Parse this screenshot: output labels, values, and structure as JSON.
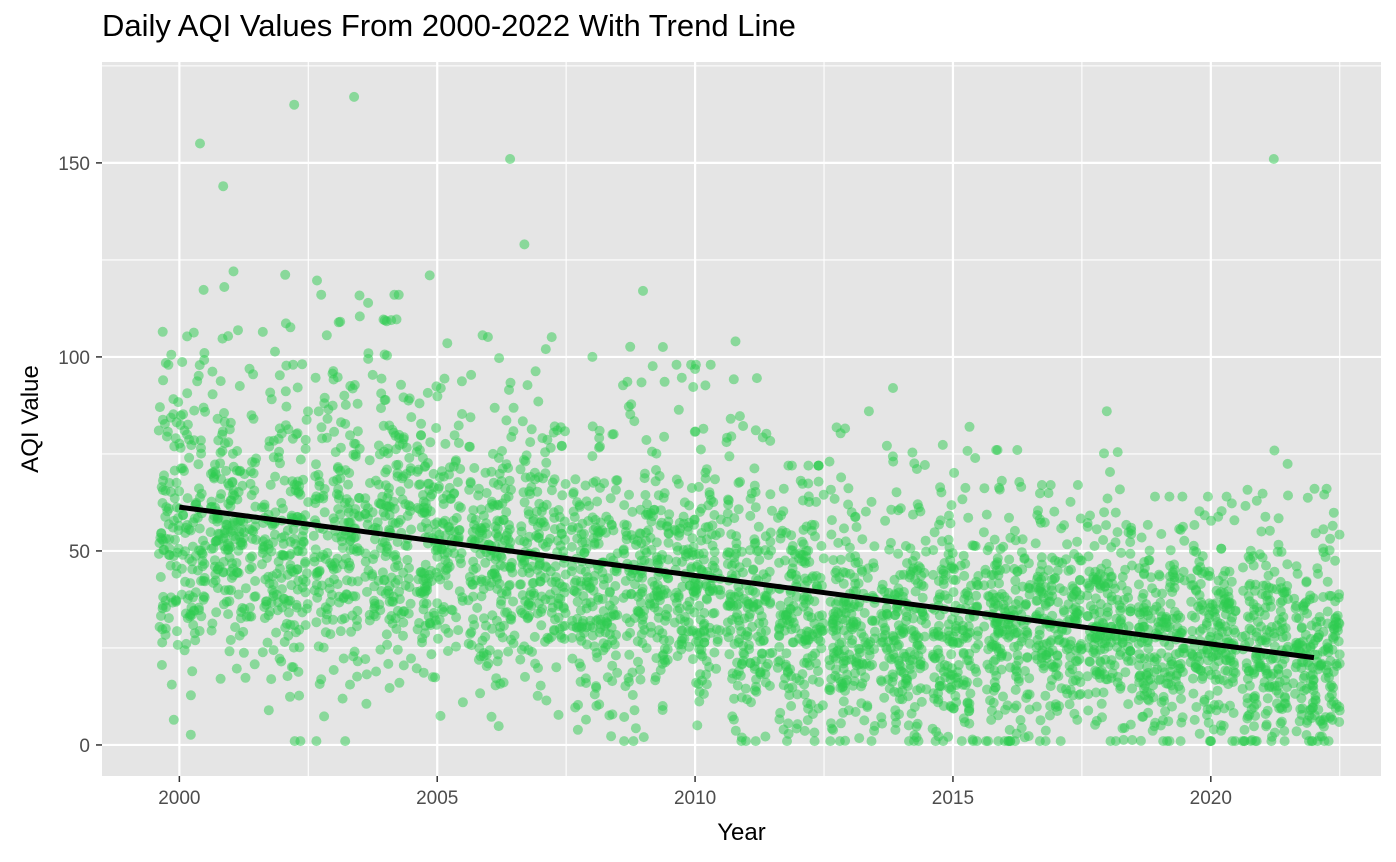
{
  "chart_data": {
    "type": "scatter",
    "title": "Daily AQI Values From 2000-2022 With Trend Line",
    "xlabel": "Year",
    "ylabel": "AQI Value",
    "xlim": [
      1998.5,
      2023.3
    ],
    "ylim": [
      -8,
      176
    ],
    "x_ticks": [
      2000,
      2005,
      2010,
      2015,
      2020
    ],
    "y_ticks": [
      0,
      50,
      100,
      150
    ],
    "grid": true,
    "legend": "none",
    "point_color": "#2ECC50",
    "panel_background": "#E5E5E5",
    "trend_color": "#000000",
    "trend_line": {
      "x": [
        2000,
        2022
      ],
      "y": [
        61.3,
        22.5
      ]
    },
    "yearly_points": [
      {
        "year": 2000,
        "center": 55,
        "spread": 18,
        "max": 155
      },
      {
        "year": 2001,
        "center": 55,
        "spread": 19,
        "max": 144
      },
      {
        "year": 2002,
        "center": 53,
        "spread": 19,
        "max": 165
      },
      {
        "year": 2003,
        "center": 52,
        "spread": 19,
        "max": 167
      },
      {
        "year": 2004,
        "center": 52,
        "spread": 19,
        "max": 116
      },
      {
        "year": 2005,
        "center": 52,
        "spread": 19,
        "max": 121
      },
      {
        "year": 2006,
        "center": 47,
        "spread": 18,
        "max": 151
      },
      {
        "year": 2007,
        "center": 47,
        "spread": 17,
        "max": 129
      },
      {
        "year": 2008,
        "center": 41,
        "spread": 17,
        "max": 100
      },
      {
        "year": 2009,
        "center": 42,
        "spread": 17,
        "max": 117
      },
      {
        "year": 2010,
        "center": 42,
        "spread": 17,
        "max": 98
      },
      {
        "year": 2011,
        "center": 37,
        "spread": 16,
        "max": 104
      },
      {
        "year": 2012,
        "center": 33,
        "spread": 15,
        "max": 72
      },
      {
        "year": 2013,
        "center": 30,
        "spread": 15,
        "max": 86
      },
      {
        "year": 2014,
        "center": 29,
        "spread": 14,
        "max": 92
      },
      {
        "year": 2015,
        "center": 30,
        "spread": 14,
        "max": 82
      },
      {
        "year": 2016,
        "center": 30,
        "spread": 14,
        "max": 76
      },
      {
        "year": 2017,
        "center": 29,
        "spread": 13,
        "max": 67
      },
      {
        "year": 2018,
        "center": 29,
        "spread": 13,
        "max": 86
      },
      {
        "year": 2019,
        "center": 27,
        "spread": 13,
        "max": 64
      },
      {
        "year": 2020,
        "center": 26,
        "spread": 13,
        "max": 64
      },
      {
        "year": 2021,
        "center": 26,
        "spread": 14,
        "max": 151
      },
      {
        "year": 2022,
        "center": 22,
        "spread": 13,
        "max": 66
      }
    ]
  }
}
